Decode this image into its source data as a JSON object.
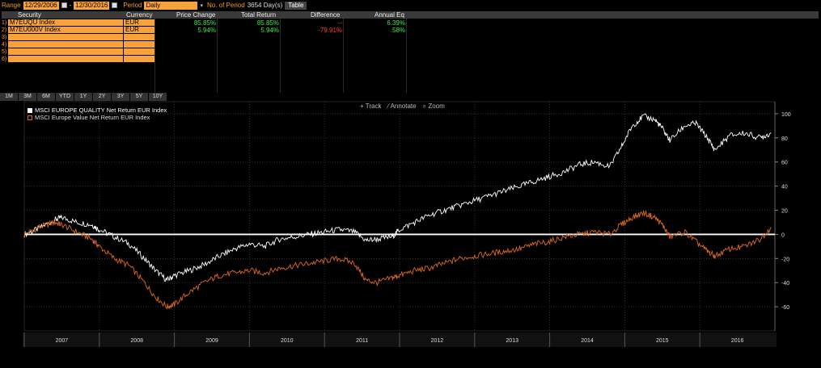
{
  "topbar": {
    "range_label": "Range",
    "start_date": "12/29/2006",
    "dash": "-",
    "end_date": "12/30/2016",
    "period_label": "Period",
    "period_value": "Daily",
    "num_period_label": "No. of Period",
    "num_period_value": "3654 Day(s)",
    "table_button": "Table"
  },
  "table": {
    "headers": [
      "Security",
      "Currency",
      "Price Change",
      "Total Return",
      "Difference",
      "Annual Eq"
    ],
    "rows": [
      {
        "n": "1)",
        "security": "M7EUQU Index",
        "currency": "EUR",
        "price_change": "85.85%",
        "total_return": "85.85%",
        "difference": "--",
        "annual_eq": "6.39%"
      },
      {
        "n": "2)",
        "security": "M7EU000V Index",
        "currency": "EUR",
        "price_change": "5.94%",
        "total_return": "5.94%",
        "difference": "-79.91%",
        "annual_eq": ".58%"
      },
      {
        "n": "3)",
        "security": "",
        "currency": "",
        "price_change": "",
        "total_return": "",
        "difference": "",
        "annual_eq": ""
      },
      {
        "n": "4)",
        "security": "",
        "currency": "",
        "price_change": "",
        "total_return": "",
        "difference": "",
        "annual_eq": ""
      },
      {
        "n": "5)",
        "security": "",
        "currency": "",
        "price_change": "",
        "total_return": "",
        "difference": "",
        "annual_eq": ""
      },
      {
        "n": "6)",
        "security": "",
        "currency": "",
        "price_change": "",
        "total_return": "",
        "difference": "",
        "annual_eq": ""
      }
    ]
  },
  "periods": [
    "1M",
    "3M",
    "6M",
    "YTD",
    "1Y",
    "2Y",
    "3Y",
    "5Y",
    "10Y"
  ],
  "toolbar": {
    "track": "Track",
    "annotate": "Annotate",
    "zoom": "Zoom"
  },
  "colors": {
    "quality": "#ffffff",
    "value": "#e0681e",
    "accent": "#f7a23a"
  },
  "chart_data": {
    "type": "line",
    "title": "",
    "xlabel": "",
    "ylabel": "",
    "ylim": [
      -80,
      110
    ],
    "yticks": [
      -60,
      -40,
      -20,
      0,
      20,
      40,
      60,
      80,
      100
    ],
    "xticks": [
      "2007",
      "2008",
      "2009",
      "2010",
      "2011",
      "2012",
      "2013",
      "2014",
      "2015",
      "2016"
    ],
    "xlim": [
      2007.0,
      2017.0
    ],
    "grid": true,
    "legend": "top-left",
    "series": [
      {
        "name": "MSCI EUROPE QUALITY Net Return EUR Index",
        "color": "#ffffff",
        "x": [
          2007.0,
          2007.2,
          2007.4,
          2007.5,
          2007.7,
          2007.9,
          2008.0,
          2008.2,
          2008.4,
          2008.6,
          2008.75,
          2008.9,
          2009.0,
          2009.2,
          2009.4,
          2009.6,
          2009.8,
          2010.0,
          2010.2,
          2010.4,
          2010.6,
          2010.8,
          2011.0,
          2011.2,
          2011.4,
          2011.55,
          2011.7,
          2011.9,
          2012.0,
          2012.2,
          2012.4,
          2012.6,
          2012.8,
          2013.0,
          2013.2,
          2013.4,
          2013.6,
          2013.8,
          2014.0,
          2014.2,
          2014.4,
          2014.6,
          2014.8,
          2014.95,
          2015.1,
          2015.25,
          2015.4,
          2015.5,
          2015.6,
          2015.8,
          2015.95,
          2016.1,
          2016.2,
          2016.4,
          2016.6,
          2016.8,
          2016.95
        ],
        "y": [
          0,
          5,
          12,
          14,
          10,
          8,
          4,
          -2,
          -8,
          -20,
          -30,
          -38,
          -34,
          -30,
          -25,
          -18,
          -12,
          -8,
          -10,
          -4,
          -2,
          0,
          2,
          4,
          2,
          -5,
          -4,
          -2,
          4,
          10,
          16,
          20,
          24,
          28,
          32,
          36,
          40,
          44,
          48,
          52,
          58,
          60,
          56,
          72,
          90,
          98,
          95,
          88,
          78,
          90,
          92,
          80,
          70,
          82,
          84,
          80,
          84
        ]
      },
      {
        "name": "MSCI Europe Value Net Return EUR Index",
        "color": "#e0681e",
        "x": [
          2007.0,
          2007.2,
          2007.4,
          2007.5,
          2007.7,
          2007.9,
          2008.0,
          2008.2,
          2008.4,
          2008.6,
          2008.75,
          2008.9,
          2009.0,
          2009.2,
          2009.4,
          2009.6,
          2009.8,
          2010.0,
          2010.2,
          2010.4,
          2010.6,
          2010.8,
          2011.0,
          2011.2,
          2011.4,
          2011.55,
          2011.7,
          2011.9,
          2012.0,
          2012.2,
          2012.4,
          2012.6,
          2012.8,
          2013.0,
          2013.2,
          2013.4,
          2013.6,
          2013.8,
          2014.0,
          2014.2,
          2014.4,
          2014.6,
          2014.8,
          2014.95,
          2015.1,
          2015.25,
          2015.4,
          2015.5,
          2015.6,
          2015.8,
          2015.95,
          2016.1,
          2016.2,
          2016.4,
          2016.6,
          2016.8,
          2016.95
        ],
        "y": [
          0,
          6,
          10,
          8,
          2,
          -4,
          -10,
          -20,
          -26,
          -40,
          -52,
          -60,
          -58,
          -48,
          -40,
          -34,
          -32,
          -30,
          -32,
          -28,
          -26,
          -24,
          -22,
          -20,
          -24,
          -38,
          -40,
          -36,
          -34,
          -30,
          -28,
          -24,
          -20,
          -18,
          -16,
          -14,
          -12,
          -8,
          -6,
          -2,
          0,
          2,
          0,
          8,
          14,
          18,
          14,
          8,
          -2,
          2,
          -6,
          -14,
          -18,
          -12,
          -10,
          -4,
          6
        ]
      }
    ]
  }
}
